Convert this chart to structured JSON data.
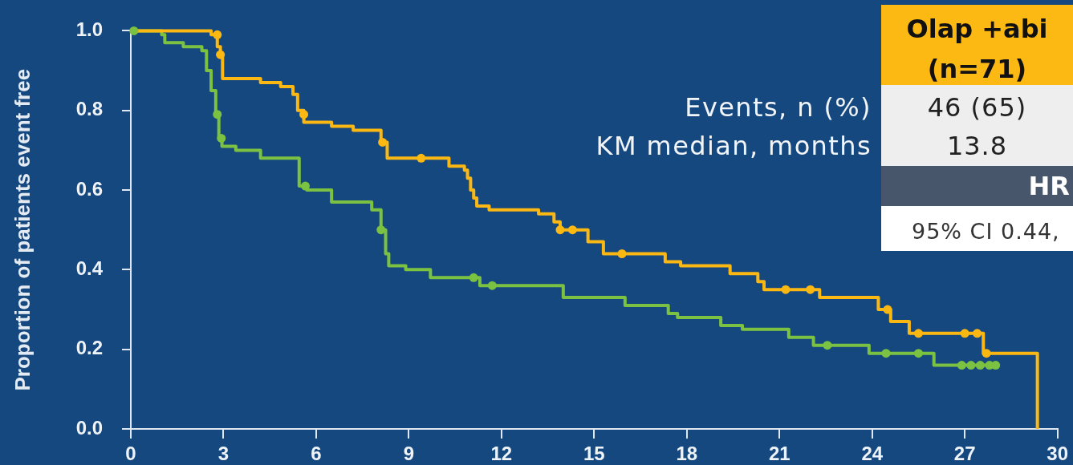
{
  "chart_data": {
    "type": "step",
    "ylabel": "Proportion of patients event free",
    "xlim": [
      0,
      30
    ],
    "xticks": [
      0,
      3,
      6,
      9,
      12,
      15,
      18,
      21,
      24,
      27,
      30
    ],
    "ylim": [
      0,
      1
    ],
    "yticks": [
      {
        "value": 0,
        "label": "0.0"
      },
      0.2,
      0.4,
      0.6,
      0.8,
      {
        "value": 1,
        "label": "1.0"
      }
    ],
    "series": [
      {
        "color": "#fbb813",
        "x": [
          0,
          2.6,
          2.8,
          2.9,
          2.97,
          4.2,
          4.85,
          5.25,
          5.4,
          5.6,
          6.5,
          7.2,
          8.1,
          8.3,
          10.3,
          10.8,
          10.9,
          11.0,
          11.1,
          11.2,
          11.6,
          13.2,
          13.7,
          13.9,
          14.8,
          15.3,
          17.3,
          17.8,
          19.4,
          20.3,
          20.5,
          22.3,
          24.2,
          24.6,
          25.2,
          27.6,
          29.35
        ],
        "values": [
          1,
          0.99,
          0.96,
          0.94,
          0.88,
          0.87,
          0.86,
          0.84,
          0.8,
          0.77,
          0.76,
          0.75,
          0.72,
          0.68,
          0.66,
          0.65,
          0.63,
          0.6,
          0.58,
          0.56,
          0.55,
          0.54,
          0.52,
          0.5,
          0.47,
          0.44,
          0.42,
          0.41,
          0.39,
          0.37,
          0.35,
          0.33,
          0.3,
          0.27,
          0.24,
          0.19,
          0
        ]
      },
      {
        "color": "#7cc242",
        "x": [
          0,
          1.0,
          1.1,
          1.7,
          2.3,
          2.45,
          2.6,
          2.75,
          2.85,
          2.95,
          3.4,
          4.2,
          5.45,
          5.7,
          6.5,
          7.8,
          8.1,
          8.25,
          8.35,
          8.9,
          9.7,
          11.3,
          14.0,
          16.0,
          17.4,
          17.7,
          19.1,
          19.8,
          21.3,
          22.1,
          23.9,
          26.0,
          28.0
        ],
        "values": [
          1,
          0.99,
          0.97,
          0.96,
          0.95,
          0.9,
          0.85,
          0.79,
          0.73,
          0.71,
          0.7,
          0.68,
          0.61,
          0.6,
          0.57,
          0.55,
          0.5,
          0.44,
          0.41,
          0.4,
          0.38,
          0.36,
          0.33,
          0.31,
          0.29,
          0.28,
          0.26,
          0.25,
          0.23,
          0.21,
          0.19,
          0.16,
          0.16
        ]
      },
      {
        "type": "scatter",
        "marker": "circle",
        "color": "#fbb813",
        "x": [
          2.8,
          2.9,
          5.6,
          8.15,
          9.4,
          13.9,
          14.3,
          15.9,
          21.2,
          22.0,
          24.5,
          25.5,
          27.0,
          27.4,
          27.7
        ],
        "values": [
          0.99,
          0.94,
          0.79,
          0.72,
          0.68,
          0.5,
          0.5,
          0.44,
          0.35,
          0.35,
          0.3,
          0.24,
          0.24,
          0.24,
          0.19
        ]
      },
      {
        "type": "scatter",
        "marker": "circle",
        "color": "#7cc242",
        "x": [
          0.1,
          2.8,
          2.93,
          5.65,
          8.1,
          11.1,
          11.7,
          22.55,
          24.45,
          25.5,
          26.9,
          27.2,
          27.5,
          27.8,
          28.0
        ],
        "values": [
          1,
          0.79,
          0.73,
          0.61,
          0.5,
          0.38,
          0.36,
          0.21,
          0.19,
          0.19,
          0.16,
          0.16,
          0.16,
          0.16,
          0.16
        ]
      }
    ],
    "annotations": [
      "Olap +abi",
      "(n=71)",
      "Events, n (%)",
      "46 (65)",
      "KM median, months",
      "13.8",
      "HR",
      "95% CI 0.44,"
    ]
  }
}
